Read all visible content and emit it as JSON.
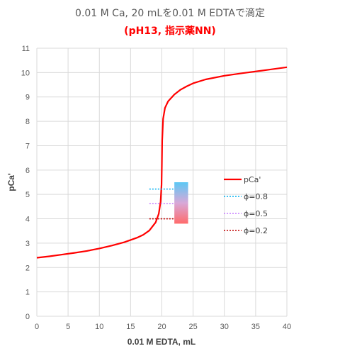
{
  "chart_data": {
    "type": "line",
    "title": "0.01 M Ca, 20 mLを0.01 M EDTAで滴定",
    "subtitle": "(pH13, 指示薬NN)",
    "xlabel": "0.01 M EDTA, mL",
    "ylabel": "pCa'",
    "xlim": [
      0,
      40
    ],
    "ylim": [
      0,
      11
    ],
    "xticks": [
      0,
      5,
      10,
      15,
      20,
      25,
      30,
      35,
      40
    ],
    "yticks": [
      0,
      1,
      2,
      3,
      4,
      5,
      6,
      7,
      8,
      9,
      10,
      11
    ],
    "grid": true,
    "legend_position": "right",
    "series": [
      {
        "name": "pCa'",
        "color": "#ff0000",
        "style": "solid",
        "points": [
          [
            0,
            2.4
          ],
          [
            2,
            2.46
          ],
          [
            4,
            2.53
          ],
          [
            6,
            2.6
          ],
          [
            8,
            2.68
          ],
          [
            10,
            2.78
          ],
          [
            12,
            2.9
          ],
          [
            14,
            3.04
          ],
          [
            16,
            3.22
          ],
          [
            17,
            3.34
          ],
          [
            18,
            3.52
          ],
          [
            19,
            3.85
          ],
          [
            19.5,
            4.2
          ],
          [
            19.8,
            4.7
          ],
          [
            19.95,
            5.4
          ],
          [
            20,
            6.2
          ],
          [
            20.05,
            7.2
          ],
          [
            20.2,
            8.1
          ],
          [
            20.5,
            8.55
          ],
          [
            21,
            8.82
          ],
          [
            22,
            9.1
          ],
          [
            23,
            9.3
          ],
          [
            24,
            9.44
          ],
          [
            25,
            9.56
          ],
          [
            27,
            9.72
          ],
          [
            30,
            9.87
          ],
          [
            33,
            9.98
          ],
          [
            36,
            10.08
          ],
          [
            40,
            10.22
          ]
        ]
      },
      {
        "name": "ϕ=0.8",
        "color": "#00b0f0",
        "style": "dotted",
        "points": [
          [
            18,
            5.22
          ],
          [
            22,
            5.22
          ]
        ]
      },
      {
        "name": "ϕ=0.5",
        "color": "#c77dff",
        "style": "dotted",
        "points": [
          [
            18,
            4.62
          ],
          [
            22,
            4.62
          ]
        ]
      },
      {
        "name": "ϕ=0.2",
        "color": "#c00000",
        "style": "dotted",
        "points": [
          [
            18,
            4.0
          ],
          [
            22,
            4.0
          ]
        ]
      }
    ],
    "indicator_bar": {
      "x_range": [
        22,
        24.2
      ],
      "y_range": [
        3.8,
        5.5
      ],
      "color_top": "#5bc8f5",
      "color_bottom": "#ff6b6b"
    }
  }
}
